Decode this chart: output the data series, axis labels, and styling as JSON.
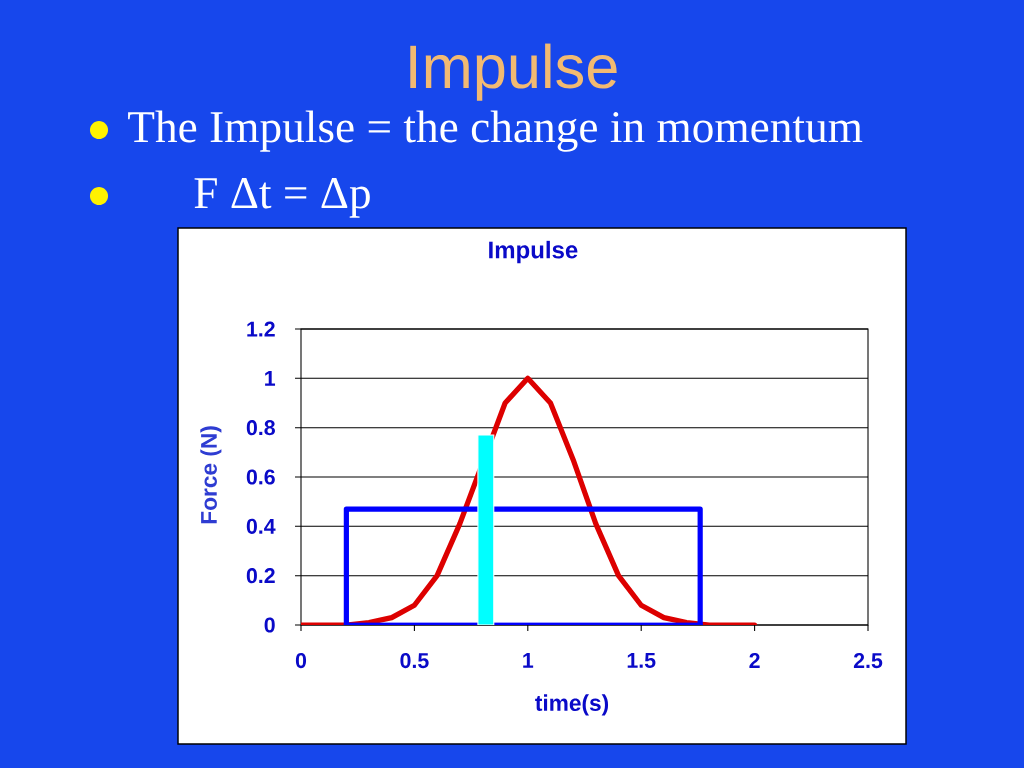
{
  "chart_data": {
    "type": "line",
    "title": "Impulse",
    "xlabel": "time(s)",
    "ylabel": "Force (N)",
    "annotations": [
      "Impulse",
      "The Impulse = the change in momentum",
      "F Δt = Δp"
    ],
    "xlim": [
      0,
      2.5
    ],
    "ylim": [
      0,
      1.2
    ],
    "xticks": [
      0,
      0.5,
      1,
      1.5,
      2,
      2.5
    ],
    "yticks": [
      0,
      0.2,
      0.4,
      0.6,
      0.8,
      1,
      1.2
    ],
    "grid": "y",
    "marker": "none",
    "line_style": "solid",
    "series": [
      {
        "color": "#dd0000",
        "x": [
          0,
          0.1,
          0.2,
          0.3,
          0.4,
          0.5,
          0.6,
          0.7,
          0.8,
          0.9,
          1.0,
          1.1,
          1.2,
          1.3,
          1.4,
          1.5,
          1.6,
          1.7,
          1.8,
          1.9,
          2.0
        ],
        "values": [
          0,
          0,
          0,
          0.01,
          0.03,
          0.08,
          0.2,
          0.41,
          null,
          0.9,
          1.0,
          0.9,
          0.67,
          0.41,
          0.2,
          0.08,
          0.03,
          0.01,
          0,
          0,
          0
        ]
      },
      {
        "color": "#0000ff",
        "x": [
          0.2,
          0.2,
          1.76,
          1.76
        ],
        "values": [
          0,
          0.47,
          0.47,
          0
        ]
      },
      {
        "color": "#0000ff",
        "x": [
          0.2,
          1.76
        ],
        "values": [
          0,
          0
        ]
      },
      {
        "type": "area",
        "color": "#00ffff",
        "x": [
          0.78,
          0.78,
          0.85,
          0.85
        ],
        "values": [
          0,
          0.77,
          0.77,
          0
        ]
      }
    ]
  }
}
